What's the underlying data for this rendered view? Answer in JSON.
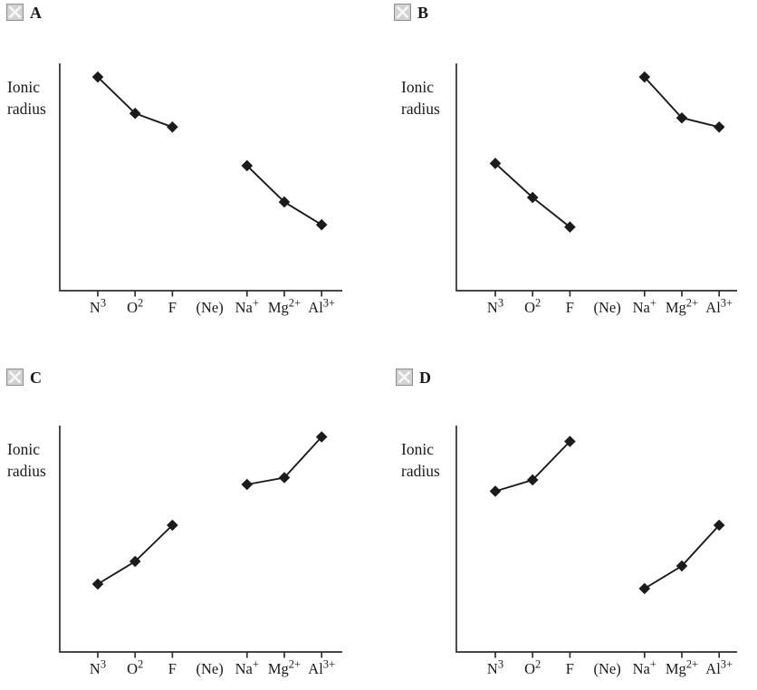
{
  "page": {
    "background": "#ffffff",
    "line_color": "#1b1b1b",
    "axis_color": "#2e2e2e",
    "checkbox_fill": "#d2d2d2",
    "checkbox_border": "#8d8d8d",
    "checkbox_x_color": "#f8f8f8"
  },
  "ylabel": {
    "line1": "Ionic",
    "line2": "radius"
  },
  "category_glyphs": [
    {
      "base": "N",
      "sup": "3"
    },
    {
      "base": "O",
      "sup": "2"
    },
    {
      "base": "F",
      "sup": ""
    },
    {
      "base": "(Ne)",
      "sup": ""
    },
    {
      "base": "Na",
      "sup": "+"
    },
    {
      "base": "Mg",
      "sup": "2+"
    },
    {
      "base": "Al",
      "sup": "3+"
    }
  ],
  "chart_data": [
    {
      "type": "line",
      "label": "A",
      "ylabel": "Ionic radius",
      "xlabel": "",
      "categories": [
        "N³",
        "O²",
        "F",
        "(Ne)",
        "Na⁺",
        "Mg²⁺",
        "Al³⁺"
      ],
      "series": [
        {
          "name": "anion-segment",
          "x_indices": [
            0,
            1,
            2
          ],
          "values": [
            94,
            78,
            72
          ]
        },
        {
          "name": "cation-segment",
          "x_indices": [
            4,
            5,
            6
          ],
          "values": [
            55,
            39,
            29
          ]
        }
      ],
      "ylim": [
        0,
        100
      ],
      "y_units": "relative (axis unlabeled)",
      "marker": "diamond",
      "color": "#1b1b1b",
      "grid": false,
      "legend": false
    },
    {
      "type": "line",
      "label": "B",
      "ylabel": "Ionic radius",
      "xlabel": "",
      "categories": [
        "N³",
        "O²",
        "F",
        "(Ne)",
        "Na⁺",
        "Mg²⁺",
        "Al³⁺"
      ],
      "series": [
        {
          "name": "anion-segment",
          "x_indices": [
            0,
            1,
            2
          ],
          "values": [
            56,
            41,
            28
          ]
        },
        {
          "name": "cation-segment",
          "x_indices": [
            4,
            5,
            6
          ],
          "values": [
            94,
            76,
            72
          ]
        }
      ],
      "ylim": [
        0,
        100
      ],
      "y_units": "relative (axis unlabeled)",
      "marker": "diamond",
      "color": "#1b1b1b",
      "grid": false,
      "legend": false
    },
    {
      "type": "line",
      "label": "C",
      "ylabel": "Ionic radius",
      "xlabel": "",
      "categories": [
        "N³",
        "O²",
        "F",
        "(Ne)",
        "Na⁺",
        "Mg²⁺",
        "Al³⁺"
      ],
      "series": [
        {
          "name": "anion-segment",
          "x_indices": [
            0,
            1,
            2
          ],
          "values": [
            30,
            40,
            56
          ]
        },
        {
          "name": "cation-segment",
          "x_indices": [
            4,
            5,
            6
          ],
          "values": [
            74,
            77,
            95
          ]
        }
      ],
      "ylim": [
        0,
        100
      ],
      "y_units": "relative (axis unlabeled)",
      "marker": "diamond",
      "color": "#1b1b1b",
      "grid": false,
      "legend": false
    },
    {
      "type": "line",
      "label": "D",
      "ylabel": "Ionic radius",
      "xlabel": "",
      "categories": [
        "N³",
        "O²",
        "F",
        "(Ne)",
        "Na⁺",
        "Mg²⁺",
        "Al³⁺"
      ],
      "series": [
        {
          "name": "anion-segment",
          "x_indices": [
            0,
            1,
            2
          ],
          "values": [
            71,
            76,
            93
          ]
        },
        {
          "name": "cation-segment",
          "x_indices": [
            4,
            5,
            6
          ],
          "values": [
            28,
            38,
            56
          ]
        }
      ],
      "ylim": [
        0,
        100
      ],
      "y_units": "relative (axis unlabeled)",
      "marker": "diamond",
      "color": "#1b1b1b",
      "grid": false,
      "legend": false
    }
  ]
}
